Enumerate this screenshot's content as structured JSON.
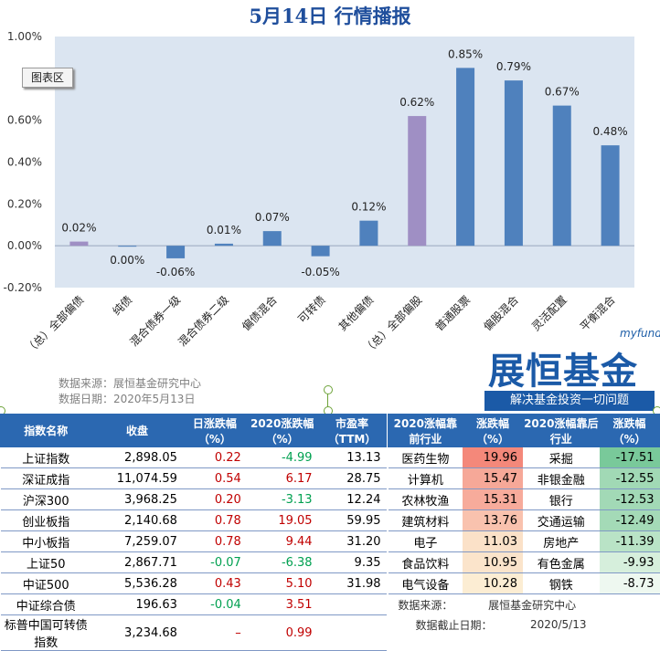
{
  "title": "5月14日  行情播报",
  "tooltip": "图表区",
  "chart_data": {
    "type": "bar",
    "categories": [
      "（总）全部偏债",
      "纯债",
      "混合债券一级",
      "混合债券二级",
      "偏债混合",
      "可转债",
      "其他偏债",
      "（总）全部偏股",
      "普通股票",
      "偏股混合",
      "灵活配置",
      "平衡混合"
    ],
    "values": [
      0.02,
      0.0,
      -0.06,
      0.01,
      0.07,
      -0.05,
      0.12,
      0.62,
      0.85,
      0.79,
      0.67,
      0.48
    ],
    "data_labels": [
      "0.02%",
      "0.00%",
      "-0.06%",
      "0.01%",
      "0.07%",
      "-0.05%",
      "0.12%",
      "0.62%",
      "0.85%",
      "0.79%",
      "0.67%",
      "0.48%"
    ],
    "highlight": [
      true,
      false,
      false,
      false,
      false,
      false,
      false,
      true,
      false,
      false,
      false,
      false
    ],
    "ylim": [
      -0.2,
      1.0
    ],
    "yticks": [
      "1.00%",
      "0.8",
      "0.60%",
      "0.40%",
      "0.20%",
      "0.00%",
      "-0.20%"
    ],
    "ytick_values": [
      1.0,
      0.8,
      0.6,
      0.4,
      0.2,
      0.0,
      -0.2
    ],
    "colors": {
      "bar": "#4f81bd",
      "highlight": "#9f8fc4",
      "plot_bg": "#dbe5f1"
    },
    "grid": false
  },
  "source": {
    "line1": "数据来源：展恒基金研究中心",
    "line2": "数据日期：2020年5月13日"
  },
  "logo": {
    "en": "myfund",
    "cn": "展恒基金",
    "tag": "解决基金投资一切问题"
  },
  "index_table": {
    "headers": [
      "指数名称",
      "收盘",
      "日涨跌幅（%）",
      "2020涨跌幅（%）",
      "市盈率（TTM）"
    ],
    "rows": [
      {
        "name": "上证指数",
        "close": "2,898.05",
        "day": "0.22",
        "ytd": "-4.99",
        "pe": "13.13",
        "day_dir": "up",
        "ytd_dir": "down"
      },
      {
        "name": "深证成指",
        "close": "11,074.59",
        "day": "0.54",
        "ytd": "6.17",
        "pe": "28.75",
        "day_dir": "up",
        "ytd_dir": "up"
      },
      {
        "name": "沪深300",
        "close": "3,968.25",
        "day": "0.20",
        "ytd": "-3.13",
        "pe": "12.24",
        "day_dir": "up",
        "ytd_dir": "down"
      },
      {
        "name": "创业板指",
        "close": "2,140.68",
        "day": "0.78",
        "ytd": "19.05",
        "pe": "59.95",
        "day_dir": "up",
        "ytd_dir": "up"
      },
      {
        "name": "中小板指",
        "close": "7,259.07",
        "day": "0.78",
        "ytd": "9.44",
        "pe": "31.20",
        "day_dir": "up",
        "ytd_dir": "up"
      },
      {
        "name": "上证50",
        "close": "2,867.71",
        "day": "-0.07",
        "ytd": "-6.38",
        "pe": "9.35",
        "day_dir": "down",
        "ytd_dir": "down"
      },
      {
        "name": "中证500",
        "close": "5,536.28",
        "day": "0.43",
        "ytd": "5.10",
        "pe": "31.98",
        "day_dir": "up",
        "ytd_dir": "up"
      },
      {
        "name": "中证综合债",
        "close": "196.63",
        "day": "-0.04",
        "ytd": "3.51",
        "pe": "",
        "day_dir": "down",
        "ytd_dir": "up"
      },
      {
        "name": "标普中国可转债指数",
        "close": "3,234.68",
        "day": "–",
        "ytd": "0.99",
        "pe": "",
        "day_dir": "up",
        "ytd_dir": "up"
      }
    ]
  },
  "industry_table": {
    "headers": [
      "2020涨幅靠前行业",
      "涨跌幅（%）",
      "2020涨幅靠后行业",
      "涨跌幅（%）"
    ],
    "rows": [
      {
        "top": "医药生物",
        "top_val": "19.96",
        "bot": "采掘",
        "bot_val": "-17.51",
        "top_color": "#f4887a",
        "bot_color": "#79c99a"
      },
      {
        "top": "计算机",
        "top_val": "15.47",
        "bot": "非银金融",
        "bot_val": "-12.55",
        "top_color": "#f6a898",
        "bot_color": "#a1d9b5"
      },
      {
        "top": "农林牧渔",
        "top_val": "15.31",
        "bot": "银行",
        "bot_val": "-12.53",
        "top_color": "#f7ab9b",
        "bot_color": "#a2d9b6"
      },
      {
        "top": "建筑材料",
        "top_val": "13.76",
        "bot": "交通运输",
        "bot_val": "-12.49",
        "top_color": "#f9c2ae",
        "bot_color": "#a4dab7"
      },
      {
        "top": "电子",
        "top_val": "11.03",
        "bot": "房地产",
        "bot_val": "-11.39",
        "top_color": "#fbe1c8",
        "bot_color": "#b9e3c6"
      },
      {
        "top": "食品饮料",
        "top_val": "10.95",
        "bot": "有色金属",
        "bot_val": "-9.93",
        "top_color": "#fbe4cb",
        "bot_color": "#d6efdc"
      },
      {
        "top": "电气设备",
        "top_val": "10.28",
        "bot": "钢铁",
        "bot_val": "-8.73",
        "top_color": "#fcedd3",
        "bot_color": "#eef8f0"
      }
    ],
    "footer": {
      "label1": "数据来源：",
      "value1": "展恒基金研究中心",
      "label2": "数据截止日期：",
      "value2": "2020/5/13"
    }
  }
}
